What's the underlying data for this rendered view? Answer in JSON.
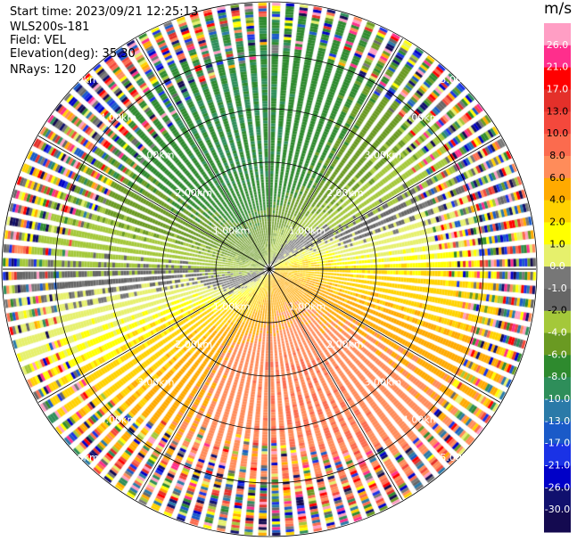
{
  "header": {
    "start_time": "Start time: 2023/09/21 12:25:13",
    "instrument": "WLS200s-181",
    "field": "Field: VEL",
    "elevation": "Elevation(deg): 35.30",
    "nrays": "NRays: 120"
  },
  "chart_data": {
    "type": "ppi",
    "field": "VEL",
    "nrays": 120,
    "range_rings_km": [
      1.0,
      2.0,
      3.0,
      4.0,
      5.0
    ],
    "range_ring_labels": [
      "1.00km",
      "2.00km",
      "3.00km",
      "4.00km",
      "5.00km"
    ],
    "azimuth_lines_deg": [
      0,
      30,
      60,
      90,
      120,
      150,
      180,
      210,
      240,
      270,
      300,
      330
    ],
    "colorbar": {
      "unit": "m/s",
      "ticks": [
        "26.0",
        "21.0",
        "17.0",
        "13.0",
        "10.0",
        "8.0",
        "6.0",
        "4.0",
        "2.0",
        "1.0",
        "0.0",
        "-1.0",
        "-2.0",
        "-4.0",
        "-6.0",
        "-8.0",
        "-10.0",
        "-13.0",
        "-17.0",
        "-21.0",
        "-26.0",
        "-30.0"
      ],
      "colors": [
        "#ff9ec4",
        "#ff2e8c",
        "#ff0000",
        "#e4302a",
        "#f4483c",
        "#fb6b4e",
        "#ff8c5a",
        "#ffaa00",
        "#ffd200",
        "#ffff00",
        "#e6f06c",
        "#777777",
        "#666666",
        "#a4c83a",
        "#6a9a22",
        "#2e8a2e",
        "#2e8e5a",
        "#2a7aa8",
        "#1a5ac8",
        "#1a32e6",
        "#0000c8",
        "#10106e",
        "#140a50"
      ]
    },
    "pattern": {
      "incoming_direction_deg": 315,
      "outgoing_direction_deg": 135,
      "approx_max_speed_ms": 8.0,
      "min_speed_ms": -10.0
    }
  }
}
